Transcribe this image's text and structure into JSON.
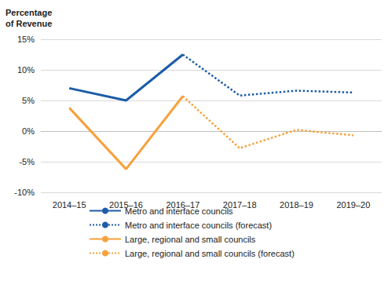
{
  "chart_data": {
    "type": "line",
    "y_label": "Percentage\nof Revenue",
    "categories": [
      "2014–15",
      "2015–16",
      "2016–17",
      "2017–18",
      "2018–19",
      "2019–20"
    ],
    "series": [
      {
        "name": "Metro and interface councils",
        "color": "#1d5ca8",
        "line_style": "solid",
        "values": [
          7.0,
          5.0,
          12.5,
          null,
          null,
          null
        ]
      },
      {
        "name": "Metro and interface councils (forecast)",
        "color": "#1d5ca8",
        "line_style": "dotted",
        "values": [
          null,
          null,
          12.5,
          5.8,
          6.6,
          6.3
        ]
      },
      {
        "name": "Large, regional and small councils",
        "color": "#f7a13c",
        "line_style": "solid",
        "values": [
          3.8,
          -6.2,
          5.7,
          null,
          null,
          null
        ]
      },
      {
        "name": "Large, regional and small councils (forecast)",
        "color": "#f7a13c",
        "line_style": "dotted",
        "values": [
          null,
          null,
          5.7,
          -2.8,
          0.2,
          -0.7
        ]
      }
    ],
    "ylim": [
      -10,
      15
    ],
    "yticks": [
      {
        "value": -10,
        "label": "-10%"
      },
      {
        "value": -5,
        "label": "-5%"
      },
      {
        "value": 0,
        "label": "0%"
      },
      {
        "value": 5,
        "label": "5%"
      },
      {
        "value": 10,
        "label": "10%"
      },
      {
        "value": 15,
        "label": "15%"
      }
    ],
    "grid": true,
    "legend": "bottom"
  }
}
